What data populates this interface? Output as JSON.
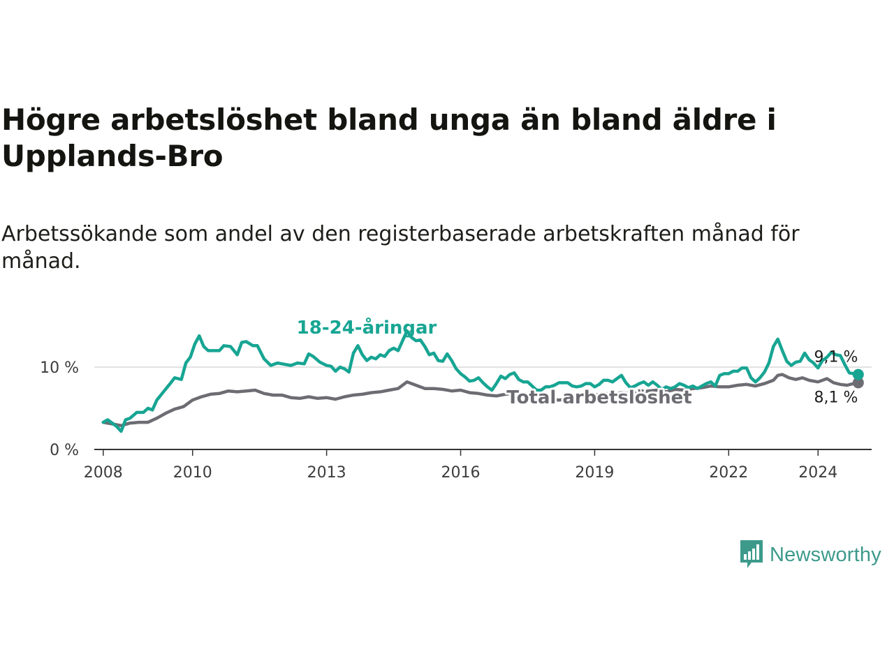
{
  "title": "Högre arbetslöshet bland unga än bland äldre i Upplands-Bro",
  "subtitle": "Arbetssökande som andel av den registerbaserade arbetskraften månad för månad.",
  "brand": {
    "name": "Newsworthy",
    "color": "#3d9a8b"
  },
  "chart_data": {
    "type": "line",
    "title": "Högre arbetslöshet bland unga än bland äldre i Upplands-Bro",
    "subtitle": "Arbetssökande som andel av den registerbaserade arbetskraften månad för månad.",
    "xlabel": "",
    "ylabel": "",
    "xlim": [
      2007.8,
      2025.2
    ],
    "ylim": [
      0,
      16
    ],
    "x_ticks": [
      2008,
      2010,
      2013,
      2016,
      2019,
      2022,
      2024
    ],
    "x_tick_labels": [
      "2008",
      "2010",
      "2013",
      "2016",
      "2019",
      "2022",
      "2024"
    ],
    "y_ticks": [
      0,
      10
    ],
    "y_tick_labels": [
      "0 %",
      "10 %"
    ],
    "grid": "horizontal",
    "series": [
      {
        "name": "18-24-åringar",
        "label": "18-24-åringar",
        "color": "#17a593",
        "end_label": "9,1 %",
        "points": [
          [
            2008.0,
            3.3
          ],
          [
            2008.1,
            3.6
          ],
          [
            2008.2,
            3.2
          ],
          [
            2008.3,
            2.8
          ],
          [
            2008.4,
            2.2
          ],
          [
            2008.5,
            3.6
          ],
          [
            2008.6,
            3.8
          ],
          [
            2008.75,
            4.5
          ],
          [
            2008.9,
            4.5
          ],
          [
            2009.0,
            5.0
          ],
          [
            2009.1,
            4.8
          ],
          [
            2009.2,
            6.0
          ],
          [
            2009.35,
            7.0
          ],
          [
            2009.5,
            8.0
          ],
          [
            2009.6,
            8.7
          ],
          [
            2009.75,
            8.5
          ],
          [
            2009.85,
            10.5
          ],
          [
            2009.95,
            11.2
          ],
          [
            2010.05,
            12.8
          ],
          [
            2010.15,
            13.8
          ],
          [
            2010.25,
            12.5
          ],
          [
            2010.35,
            12.0
          ],
          [
            2010.45,
            12.0
          ],
          [
            2010.6,
            12.0
          ],
          [
            2010.7,
            12.6
          ],
          [
            2010.85,
            12.5
          ],
          [
            2011.0,
            11.5
          ],
          [
            2011.1,
            13.0
          ],
          [
            2011.2,
            13.1
          ],
          [
            2011.35,
            12.6
          ],
          [
            2011.45,
            12.6
          ],
          [
            2011.6,
            11.0
          ],
          [
            2011.75,
            10.2
          ],
          [
            2011.9,
            10.5
          ],
          [
            2012.0,
            10.4
          ],
          [
            2012.2,
            10.2
          ],
          [
            2012.35,
            10.5
          ],
          [
            2012.5,
            10.4
          ],
          [
            2012.6,
            11.6
          ],
          [
            2012.7,
            11.3
          ],
          [
            2012.85,
            10.6
          ],
          [
            2013.0,
            10.2
          ],
          [
            2013.1,
            10.1
          ],
          [
            2013.2,
            9.5
          ],
          [
            2013.3,
            10.0
          ],
          [
            2013.4,
            9.8
          ],
          [
            2013.5,
            9.4
          ],
          [
            2013.6,
            11.7
          ],
          [
            2013.7,
            12.6
          ],
          [
            2013.8,
            11.5
          ],
          [
            2013.9,
            10.8
          ],
          [
            2014.0,
            11.2
          ],
          [
            2014.1,
            11.0
          ],
          [
            2014.2,
            11.5
          ],
          [
            2014.3,
            11.3
          ],
          [
            2014.4,
            12.0
          ],
          [
            2014.5,
            12.3
          ],
          [
            2014.6,
            12.0
          ],
          [
            2014.7,
            13.2
          ],
          [
            2014.8,
            14.4
          ],
          [
            2014.9,
            13.6
          ],
          [
            2015.0,
            13.2
          ],
          [
            2015.1,
            13.3
          ],
          [
            2015.2,
            12.5
          ],
          [
            2015.3,
            11.5
          ],
          [
            2015.4,
            11.7
          ],
          [
            2015.5,
            10.8
          ],
          [
            2015.6,
            10.7
          ],
          [
            2015.7,
            11.6
          ],
          [
            2015.8,
            10.8
          ],
          [
            2015.9,
            9.8
          ],
          [
            2016.0,
            9.2
          ],
          [
            2016.1,
            8.8
          ],
          [
            2016.2,
            8.3
          ],
          [
            2016.3,
            8.4
          ],
          [
            2016.4,
            8.7
          ],
          [
            2016.5,
            8.1
          ],
          [
            2016.6,
            7.6
          ],
          [
            2016.7,
            7.2
          ],
          [
            2016.8,
            8.0
          ],
          [
            2016.9,
            8.9
          ],
          [
            2017.0,
            8.6
          ],
          [
            2017.1,
            9.1
          ],
          [
            2017.2,
            9.3
          ],
          [
            2017.3,
            8.5
          ],
          [
            2017.4,
            8.2
          ],
          [
            2017.5,
            8.2
          ],
          [
            2017.6,
            7.7
          ],
          [
            2017.7,
            7.2
          ],
          [
            2017.8,
            7.2
          ],
          [
            2017.9,
            7.6
          ],
          [
            2018.0,
            7.6
          ],
          [
            2018.1,
            7.8
          ],
          [
            2018.2,
            8.1
          ],
          [
            2018.3,
            8.1
          ],
          [
            2018.4,
            8.1
          ],
          [
            2018.5,
            7.7
          ],
          [
            2018.6,
            7.6
          ],
          [
            2018.7,
            7.7
          ],
          [
            2018.8,
            8.0
          ],
          [
            2018.9,
            8.0
          ],
          [
            2019.0,
            7.6
          ],
          [
            2019.1,
            7.9
          ],
          [
            2019.2,
            8.4
          ],
          [
            2019.3,
            8.4
          ],
          [
            2019.4,
            8.2
          ],
          [
            2019.5,
            8.6
          ],
          [
            2019.6,
            9.0
          ],
          [
            2019.7,
            8.1
          ],
          [
            2019.8,
            7.5
          ],
          [
            2019.9,
            7.7
          ],
          [
            2020.0,
            8.0
          ],
          [
            2020.1,
            8.2
          ],
          [
            2020.2,
            7.8
          ],
          [
            2020.3,
            8.2
          ],
          [
            2020.4,
            7.8
          ],
          [
            2020.5,
            7.3
          ],
          [
            2020.6,
            7.6
          ],
          [
            2020.7,
            7.4
          ],
          [
            2020.8,
            7.6
          ],
          [
            2020.9,
            8.0
          ],
          [
            2021.0,
            7.8
          ],
          [
            2021.1,
            7.5
          ],
          [
            2021.2,
            7.7
          ],
          [
            2021.3,
            7.4
          ],
          [
            2021.4,
            7.7
          ],
          [
            2021.5,
            8.0
          ],
          [
            2021.6,
            8.2
          ],
          [
            2021.7,
            7.7
          ],
          [
            2021.8,
            9.0
          ],
          [
            2021.9,
            9.2
          ],
          [
            2022.0,
            9.2
          ],
          [
            2022.1,
            9.5
          ],
          [
            2022.2,
            9.5
          ],
          [
            2022.3,
            9.9
          ],
          [
            2022.4,
            9.9
          ],
          [
            2022.5,
            8.7
          ],
          [
            2022.6,
            8.2
          ],
          [
            2022.7,
            8.7
          ],
          [
            2022.8,
            9.4
          ],
          [
            2022.9,
            10.5
          ],
          [
            2023.0,
            12.5
          ],
          [
            2023.1,
            13.4
          ],
          [
            2023.2,
            12.0
          ],
          [
            2023.3,
            10.7
          ],
          [
            2023.4,
            10.2
          ],
          [
            2023.5,
            10.6
          ],
          [
            2023.6,
            10.7
          ],
          [
            2023.7,
            11.7
          ],
          [
            2023.8,
            10.9
          ],
          [
            2023.9,
            10.5
          ],
          [
            2024.0,
            9.9
          ],
          [
            2024.1,
            10.8
          ],
          [
            2024.2,
            11.2
          ],
          [
            2024.3,
            11.8
          ],
          [
            2024.4,
            11.5
          ],
          [
            2024.5,
            11.4
          ],
          [
            2024.6,
            10.3
          ],
          [
            2024.7,
            9.3
          ],
          [
            2024.8,
            9.2
          ],
          [
            2024.9,
            9.1
          ]
        ]
      },
      {
        "name": "Total arbetslöshet",
        "label": "Total arbetslöshet",
        "color": "#6c6c73",
        "end_label": "8,1 %",
        "points": [
          [
            2008.0,
            3.3
          ],
          [
            2008.2,
            3.1
          ],
          [
            2008.4,
            2.9
          ],
          [
            2008.6,
            3.2
          ],
          [
            2008.8,
            3.3
          ],
          [
            2009.0,
            3.3
          ],
          [
            2009.2,
            3.8
          ],
          [
            2009.4,
            4.4
          ],
          [
            2009.6,
            4.9
          ],
          [
            2009.8,
            5.2
          ],
          [
            2010.0,
            6.0
          ],
          [
            2010.2,
            6.4
          ],
          [
            2010.4,
            6.7
          ],
          [
            2010.6,
            6.8
          ],
          [
            2010.8,
            7.1
          ],
          [
            2011.0,
            7.0
          ],
          [
            2011.2,
            7.1
          ],
          [
            2011.4,
            7.2
          ],
          [
            2011.6,
            6.8
          ],
          [
            2011.8,
            6.6
          ],
          [
            2012.0,
            6.6
          ],
          [
            2012.2,
            6.3
          ],
          [
            2012.4,
            6.2
          ],
          [
            2012.6,
            6.4
          ],
          [
            2012.8,
            6.2
          ],
          [
            2013.0,
            6.3
          ],
          [
            2013.2,
            6.1
          ],
          [
            2013.4,
            6.4
          ],
          [
            2013.6,
            6.6
          ],
          [
            2013.8,
            6.7
          ],
          [
            2014.0,
            6.9
          ],
          [
            2014.2,
            7.0
          ],
          [
            2014.4,
            7.2
          ],
          [
            2014.6,
            7.4
          ],
          [
            2014.8,
            8.2
          ],
          [
            2015.0,
            7.8
          ],
          [
            2015.2,
            7.4
          ],
          [
            2015.4,
            7.4
          ],
          [
            2015.6,
            7.3
          ],
          [
            2015.8,
            7.1
          ],
          [
            2016.0,
            7.2
          ],
          [
            2016.2,
            6.9
          ],
          [
            2016.4,
            6.8
          ],
          [
            2016.6,
            6.6
          ],
          [
            2016.8,
            6.5
          ],
          [
            2017.0,
            6.7
          ],
          [
            2017.2,
            6.8
          ],
          [
            2017.4,
            6.8
          ],
          [
            2017.6,
            6.6
          ],
          [
            2017.8,
            6.4
          ],
          [
            2018.0,
            6.1
          ],
          [
            2018.2,
            6.0
          ],
          [
            2018.4,
            6.1
          ],
          [
            2018.6,
            6.4
          ],
          [
            2018.8,
            6.6
          ],
          [
            2019.0,
            6.6
          ],
          [
            2019.2,
            6.8
          ],
          [
            2019.4,
            6.7
          ],
          [
            2019.6,
            6.9
          ],
          [
            2019.8,
            6.8
          ],
          [
            2020.0,
            6.9
          ],
          [
            2020.2,
            7.1
          ],
          [
            2020.4,
            7.2
          ],
          [
            2020.6,
            7.0
          ],
          [
            2020.8,
            7.3
          ],
          [
            2021.0,
            7.2
          ],
          [
            2021.2,
            7.4
          ],
          [
            2021.4,
            7.5
          ],
          [
            2021.6,
            7.7
          ],
          [
            2021.8,
            7.6
          ],
          [
            2022.0,
            7.6
          ],
          [
            2022.2,
            7.8
          ],
          [
            2022.4,
            7.9
          ],
          [
            2022.6,
            7.7
          ],
          [
            2022.8,
            8.0
          ],
          [
            2023.0,
            8.4
          ],
          [
            2023.1,
            9.0
          ],
          [
            2023.2,
            9.1
          ],
          [
            2023.35,
            8.7
          ],
          [
            2023.5,
            8.5
          ],
          [
            2023.65,
            8.7
          ],
          [
            2023.8,
            8.4
          ],
          [
            2024.0,
            8.2
          ],
          [
            2024.2,
            8.6
          ],
          [
            2024.35,
            8.1
          ],
          [
            2024.5,
            7.9
          ],
          [
            2024.65,
            7.8
          ],
          [
            2024.8,
            8.0
          ],
          [
            2024.9,
            8.1
          ]
        ]
      }
    ]
  }
}
